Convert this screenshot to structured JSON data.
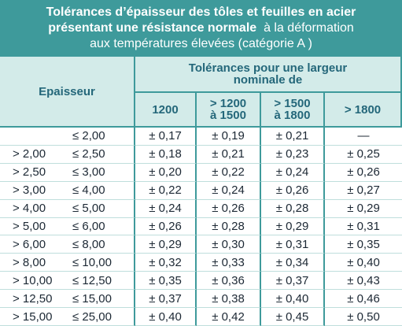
{
  "title": {
    "lines": [
      [
        {
          "text": "Tolérances d’épaisseur des tôles et feuilles en acier",
          "bold": true
        }
      ],
      [
        {
          "text": "présentant une résistance normale",
          "bold": true
        },
        {
          "text": "  à la déformation",
          "bold": false
        }
      ],
      [
        {
          "text": "aux températures élevées (catégorie A )",
          "bold": false
        }
      ]
    ]
  },
  "table": {
    "thickness_header": "Epaisseur",
    "width_header": "Tolérances pour une largeur nominale de",
    "columns": [
      [
        "1200"
      ],
      [
        "> 1200",
        "à 1500"
      ],
      [
        "> 1500",
        "à 1800"
      ],
      [
        "> 1800"
      ]
    ],
    "rows": [
      {
        "to": "≤ 2,00",
        "values": [
          "± 0,17",
          "± 0,19",
          "± 0,21",
          "—"
        ]
      },
      {
        "from": "> 2,00",
        "to": "≤ 2,50",
        "values": [
          "± 0,18",
          "± 0,21",
          "± 0,23",
          "± 0,25"
        ]
      },
      {
        "from": "> 2,50",
        "to": "≤ 3,00",
        "values": [
          "± 0,20",
          "± 0,22",
          "± 0,24",
          "± 0,26"
        ]
      },
      {
        "from": "> 3,00",
        "to": "≤ 4,00",
        "values": [
          "± 0,22",
          "± 0,24",
          "± 0,26",
          "± 0,27"
        ]
      },
      {
        "from": "> 4,00",
        "to": "≤ 5,00",
        "values": [
          "± 0,24",
          "± 0,26",
          "± 0,28",
          "± 0,29"
        ]
      },
      {
        "from": "> 5,00",
        "to": "≤ 6,00",
        "values": [
          "± 0,26",
          "± 0,28",
          "± 0,29",
          "± 0,31"
        ]
      },
      {
        "from": "> 6,00",
        "to": "≤ 8,00",
        "values": [
          "± 0,29",
          "± 0,30",
          "± 0,31",
          "± 0,35"
        ]
      },
      {
        "from": "> 8,00",
        "to": "≤ 10,00",
        "values": [
          "± 0,32",
          "± 0,33",
          "± 0,34",
          "± 0,40"
        ]
      },
      {
        "from": "> 10,00",
        "to": "≤ 12,50",
        "values": [
          "± 0,35",
          "± 0,36",
          "± 0,37",
          "± 0,43"
        ]
      },
      {
        "from": "> 12,50",
        "to": "≤ 15,00",
        "values": [
          "± 0,37",
          "± 0,38",
          "± 0,40",
          "± 0,46"
        ]
      },
      {
        "from": "> 15,00",
        "to": "≤ 25,00",
        "values": [
          "± 0,40",
          "± 0,42",
          "± 0,45",
          "± 0,50"
        ]
      }
    ]
  }
}
